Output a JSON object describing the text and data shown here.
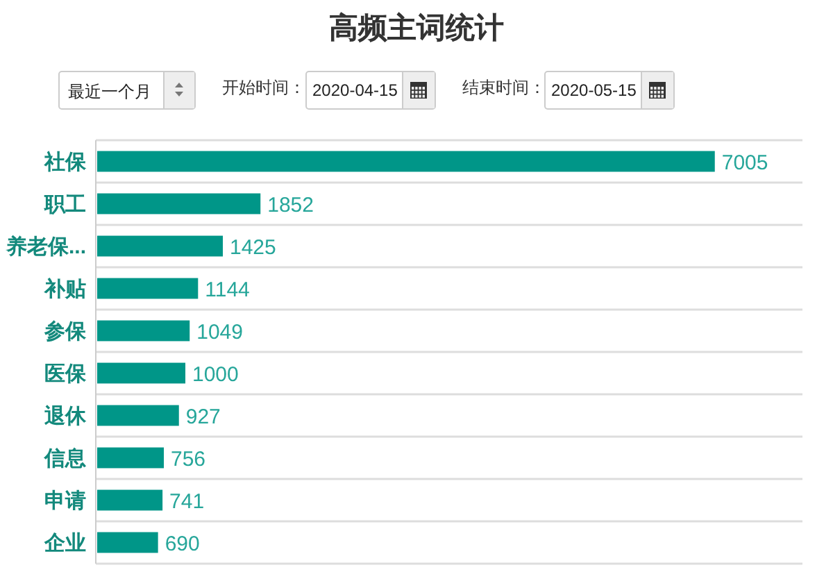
{
  "chart_data": {
    "type": "bar",
    "orientation": "horizontal",
    "title": "高频主词统计",
    "categories": [
      "社保",
      "职工",
      "养老保...",
      "补贴",
      "参保",
      "医保",
      "退休",
      "信息",
      "申请",
      "企业"
    ],
    "values": [
      7005,
      1852,
      1425,
      1144,
      1049,
      1000,
      927,
      756,
      741,
      690
    ],
    "color": "#009688",
    "data_labels": true,
    "grid": "y",
    "tick_labels": "y",
    "annotations": [
      "最近一个月",
      "开始时间：",
      "2020-04-15",
      "结束时间：",
      "2020-05-15"
    ]
  }
}
